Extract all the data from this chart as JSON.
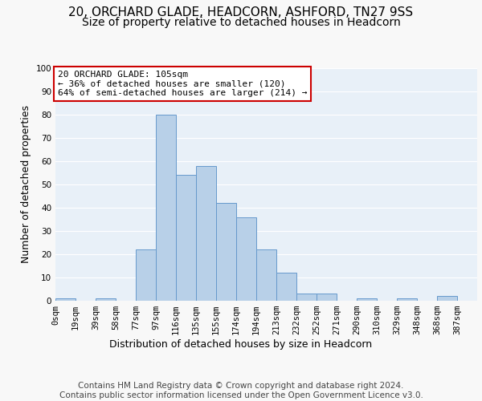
{
  "title1": "20, ORCHARD GLADE, HEADCORN, ASHFORD, TN27 9SS",
  "title2": "Size of property relative to detached houses in Headcorn",
  "xlabel": "Distribution of detached houses by size in Headcorn",
  "ylabel": "Number of detached properties",
  "bar_values": [
    1,
    0,
    1,
    0,
    22,
    80,
    54,
    58,
    42,
    36,
    22,
    12,
    3,
    3,
    0,
    1,
    0,
    1,
    0,
    2,
    0
  ],
  "tick_labels": [
    "0sqm",
    "19sqm",
    "39sqm",
    "58sqm",
    "77sqm",
    "97sqm",
    "116sqm",
    "135sqm",
    "155sqm",
    "174sqm",
    "194sqm",
    "213sqm",
    "232sqm",
    "252sqm",
    "271sqm",
    "290sqm",
    "310sqm",
    "329sqm",
    "348sqm",
    "368sqm",
    "387sqm"
  ],
  "bar_color": "#b8d0e8",
  "bar_edge_color": "#6699cc",
  "bg_color": "#e8f0f8",
  "grid_color": "#ffffff",
  "annotation_box_color": "#cc0000",
  "annotation_text": "20 ORCHARD GLADE: 105sqm\n← 36% of detached houses are smaller (120)\n64% of semi-detached houses are larger (214) →",
  "ylim": [
    0,
    100
  ],
  "yticks": [
    0,
    10,
    20,
    30,
    40,
    50,
    60,
    70,
    80,
    90,
    100
  ],
  "footnote": "Contains HM Land Registry data © Crown copyright and database right 2024.\nContains public sector information licensed under the Open Government Licence v3.0.",
  "title1_fontsize": 11,
  "title2_fontsize": 10,
  "xlabel_fontsize": 9,
  "ylabel_fontsize": 9,
  "tick_fontsize": 7.5,
  "annot_fontsize": 8,
  "footnote_fontsize": 7.5,
  "fig_bg_color": "#f8f8f8"
}
